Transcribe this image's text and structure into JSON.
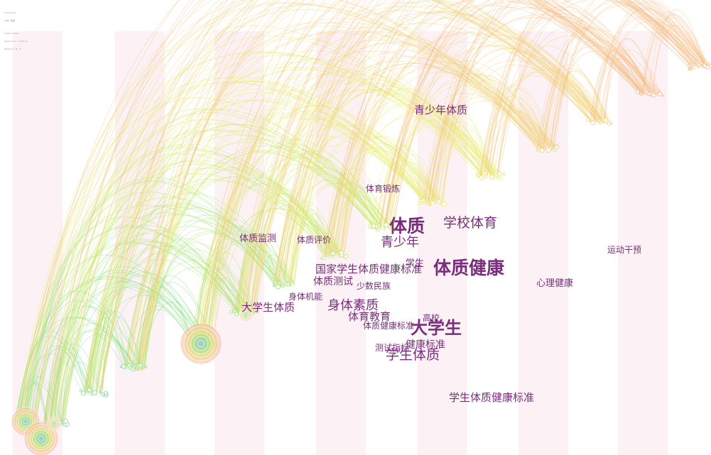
{
  "header_meta": [
    "CiteSpace",
    "CNKI 数据",
    "",
    "Timeslicing",
    "Selection criteria",
    "Network: N, E"
  ],
  "keywords": [
    {
      "id": "qsntz",
      "text": "青少年体质"
    },
    {
      "id": "tydl",
      "text": "体育锻炼"
    },
    {
      "id": "tz",
      "text": "体质"
    },
    {
      "id": "xxty",
      "text": "学校体育"
    },
    {
      "id": "qsn",
      "text": "青少年"
    },
    {
      "id": "tzjc",
      "text": "体质监测"
    },
    {
      "id": "tzpj",
      "text": "体质评价"
    },
    {
      "id": "ydgy",
      "text": "运动干预"
    },
    {
      "id": "xs",
      "text": "学生"
    },
    {
      "id": "tzjk",
      "text": "体质健康"
    },
    {
      "id": "gjbz",
      "text": "国家学生体质健康标准"
    },
    {
      "id": "tzcs",
      "text": "体质测试"
    },
    {
      "id": "xlj",
      "text": "心理健康"
    },
    {
      "id": "ssmz",
      "text": "少数民族"
    },
    {
      "id": "stjn",
      "text": "身体机能"
    },
    {
      "id": "dxstz",
      "text": "大学生体质"
    },
    {
      "id": "stsz",
      "text": "身体素质"
    },
    {
      "id": "tyjy",
      "text": "体育教育"
    },
    {
      "id": "gx",
      "text": "高校"
    },
    {
      "id": "tzjkbz",
      "text": "体质健康标准"
    },
    {
      "id": "dxs",
      "text": "大学生"
    },
    {
      "id": "jkbz",
      "text": "健康标准"
    },
    {
      "id": "cszb",
      "text": "测试指标"
    },
    {
      "id": "xstz",
      "text": "学生体质"
    },
    {
      "id": "xsbz",
      "text": "学生体质健康标准"
    }
  ],
  "palette": [
    "#a6d4e6",
    "#8fd6a0",
    "#7ee07a",
    "#9ee36a",
    "#c6e860",
    "#e6ea66",
    "#f2d27a",
    "#f6bc84",
    "#f8a98a"
  ]
}
